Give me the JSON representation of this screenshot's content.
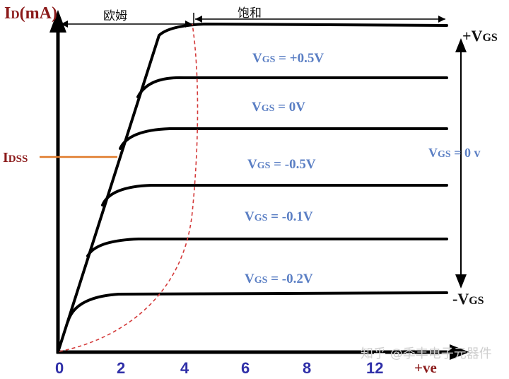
{
  "axes": {
    "y_title_main": "I",
    "y_title_sub": "D",
    "y_title_unit": "(mA)",
    "x_title": "+ve",
    "x_ticks": [
      "0",
      "2",
      "4",
      "6",
      "8",
      "12"
    ]
  },
  "regions": {
    "ohmic": "欧姆",
    "saturation": "饱和"
  },
  "idss": {
    "main": "I",
    "sub": "DSS"
  },
  "curve_labels": [
    {
      "prefix": "V",
      "sub": "GS",
      "suffix": " = +0.5V"
    },
    {
      "prefix": "V",
      "sub": "GS",
      "suffix": " = 0V"
    },
    {
      "prefix": "V",
      "sub": "GS",
      "suffix": " = -0.5V"
    },
    {
      "prefix": "V",
      "sub": "GS",
      "suffix": " = -0.1V"
    },
    {
      "prefix": "V",
      "sub": "GS",
      "suffix": " = -0.2V"
    }
  ],
  "right_arrow": {
    "top_prefix": "+V",
    "top_sub": "GS",
    "mid_prefix": "V",
    "mid_sub": "GS",
    "mid_suffix": " = 0 v",
    "bottom_prefix": "-V",
    "bottom_sub": "GS"
  },
  "watermark": "知乎 @季丰电子元器件",
  "colors": {
    "curves": "#000000",
    "curve_labels": "#5b7fc4",
    "ticks": "#2f2fa8",
    "axis_title": "#8b1a1a",
    "idss_line": "#e07a2a",
    "pinch_off": "#d43a3a"
  }
}
